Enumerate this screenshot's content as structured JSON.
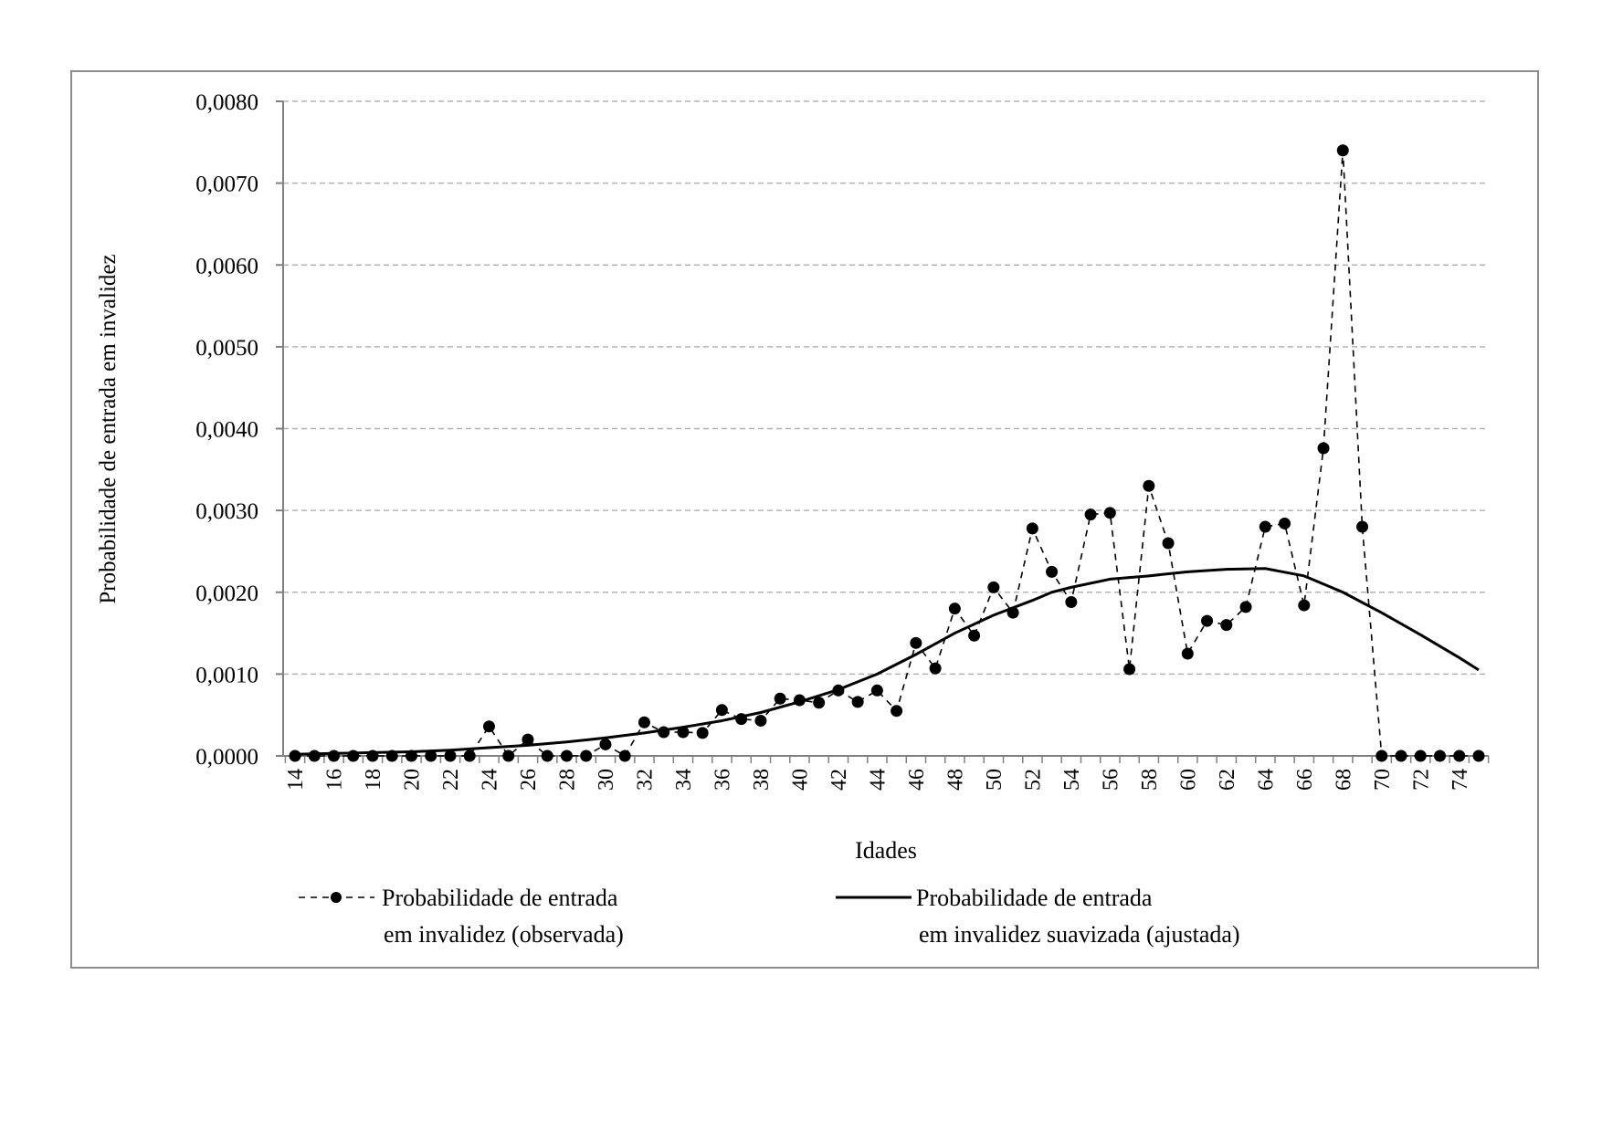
{
  "chart_data": {
    "type": "line",
    "title": "",
    "xlabel": "Idades",
    "ylabel": "Probabilidade de entrada em invalidez",
    "ylim": [
      0,
      0.008
    ],
    "xlim": [
      14,
      75
    ],
    "yticks": [
      "0,0000",
      "0,0010",
      "0,0020",
      "0,0030",
      "0,0040",
      "0,0050",
      "0,0060",
      "0,0070",
      "0,0080"
    ],
    "ytick_values": [
      0,
      0.001,
      0.002,
      0.003,
      0.004,
      0.005,
      0.006,
      0.007,
      0.008
    ],
    "xticks": [
      "14",
      "16",
      "18",
      "20",
      "22",
      "24",
      "26",
      "28",
      "30",
      "32",
      "34",
      "36",
      "38",
      "40",
      "42",
      "44",
      "46",
      "48",
      "50",
      "52",
      "54",
      "56",
      "58",
      "60",
      "62",
      "64",
      "66",
      "68",
      "70",
      "72",
      "74"
    ],
    "grid": "horizontal dashed",
    "legend_position": "bottom",
    "series": [
      {
        "name": "observada",
        "legend": [
          "Probabilidade de entrada",
          "em invalidez (observada)"
        ],
        "style": "dashed with markers",
        "x": [
          14,
          15,
          16,
          17,
          18,
          19,
          20,
          21,
          22,
          23,
          24,
          25,
          26,
          27,
          28,
          29,
          30,
          31,
          32,
          33,
          34,
          35,
          36,
          37,
          38,
          39,
          40,
          41,
          42,
          43,
          44,
          45,
          46,
          47,
          48,
          49,
          50,
          51,
          52,
          53,
          54,
          55,
          56,
          57,
          58,
          59,
          60,
          61,
          62,
          63,
          64,
          65,
          66,
          67,
          68,
          69,
          70,
          71,
          72,
          73,
          74,
          75
        ],
        "values": [
          0,
          0,
          0,
          0,
          0,
          0,
          0,
          0,
          0,
          0,
          0.00036,
          0,
          0.0002,
          0,
          0,
          0,
          0.00014,
          0,
          0.00041,
          0.00029,
          0.00029,
          0.00028,
          0.00056,
          0.00045,
          0.00043,
          0.0007,
          0.00068,
          0.00065,
          0.0008,
          0.00066,
          0.0008,
          0.00055,
          0.00138,
          0.00107,
          0.0018,
          0.00147,
          0.00206,
          0.00175,
          0.00278,
          0.00225,
          0.00188,
          0.00295,
          0.00297,
          0.00106,
          0.0033,
          0.0026,
          0.00125,
          0.00165,
          0.0016,
          0.00182,
          0.0028,
          0.00284,
          0.00184,
          0.00376,
          0.0074,
          0.0028,
          0,
          0,
          0,
          0,
          0,
          0
        ]
      },
      {
        "name": "ajustada",
        "legend": [
          "Probabilidade de entrada",
          "em invalidez suavizada (ajustada)"
        ],
        "style": "solid",
        "x": [
          14,
          16,
          18,
          20,
          22,
          24,
          26,
          28,
          30,
          32,
          34,
          36,
          38,
          40,
          42,
          44,
          46,
          48,
          50,
          52,
          53,
          54,
          56,
          58,
          60,
          62,
          64,
          66,
          68,
          70,
          72,
          74,
          75
        ],
        "values": [
          2e-05,
          3e-05,
          4e-05,
          5e-05,
          7e-05,
          0.0001,
          0.00013,
          0.00017,
          0.00022,
          0.00028,
          0.00035,
          0.00043,
          0.00053,
          0.00066,
          0.00081,
          0.001,
          0.00124,
          0.0015,
          0.00172,
          0.0019,
          0.002,
          0.00206,
          0.00216,
          0.0022,
          0.00225,
          0.00228,
          0.00229,
          0.0022,
          0.002,
          0.00175,
          0.00148,
          0.0012,
          0.00105
        ]
      }
    ]
  }
}
